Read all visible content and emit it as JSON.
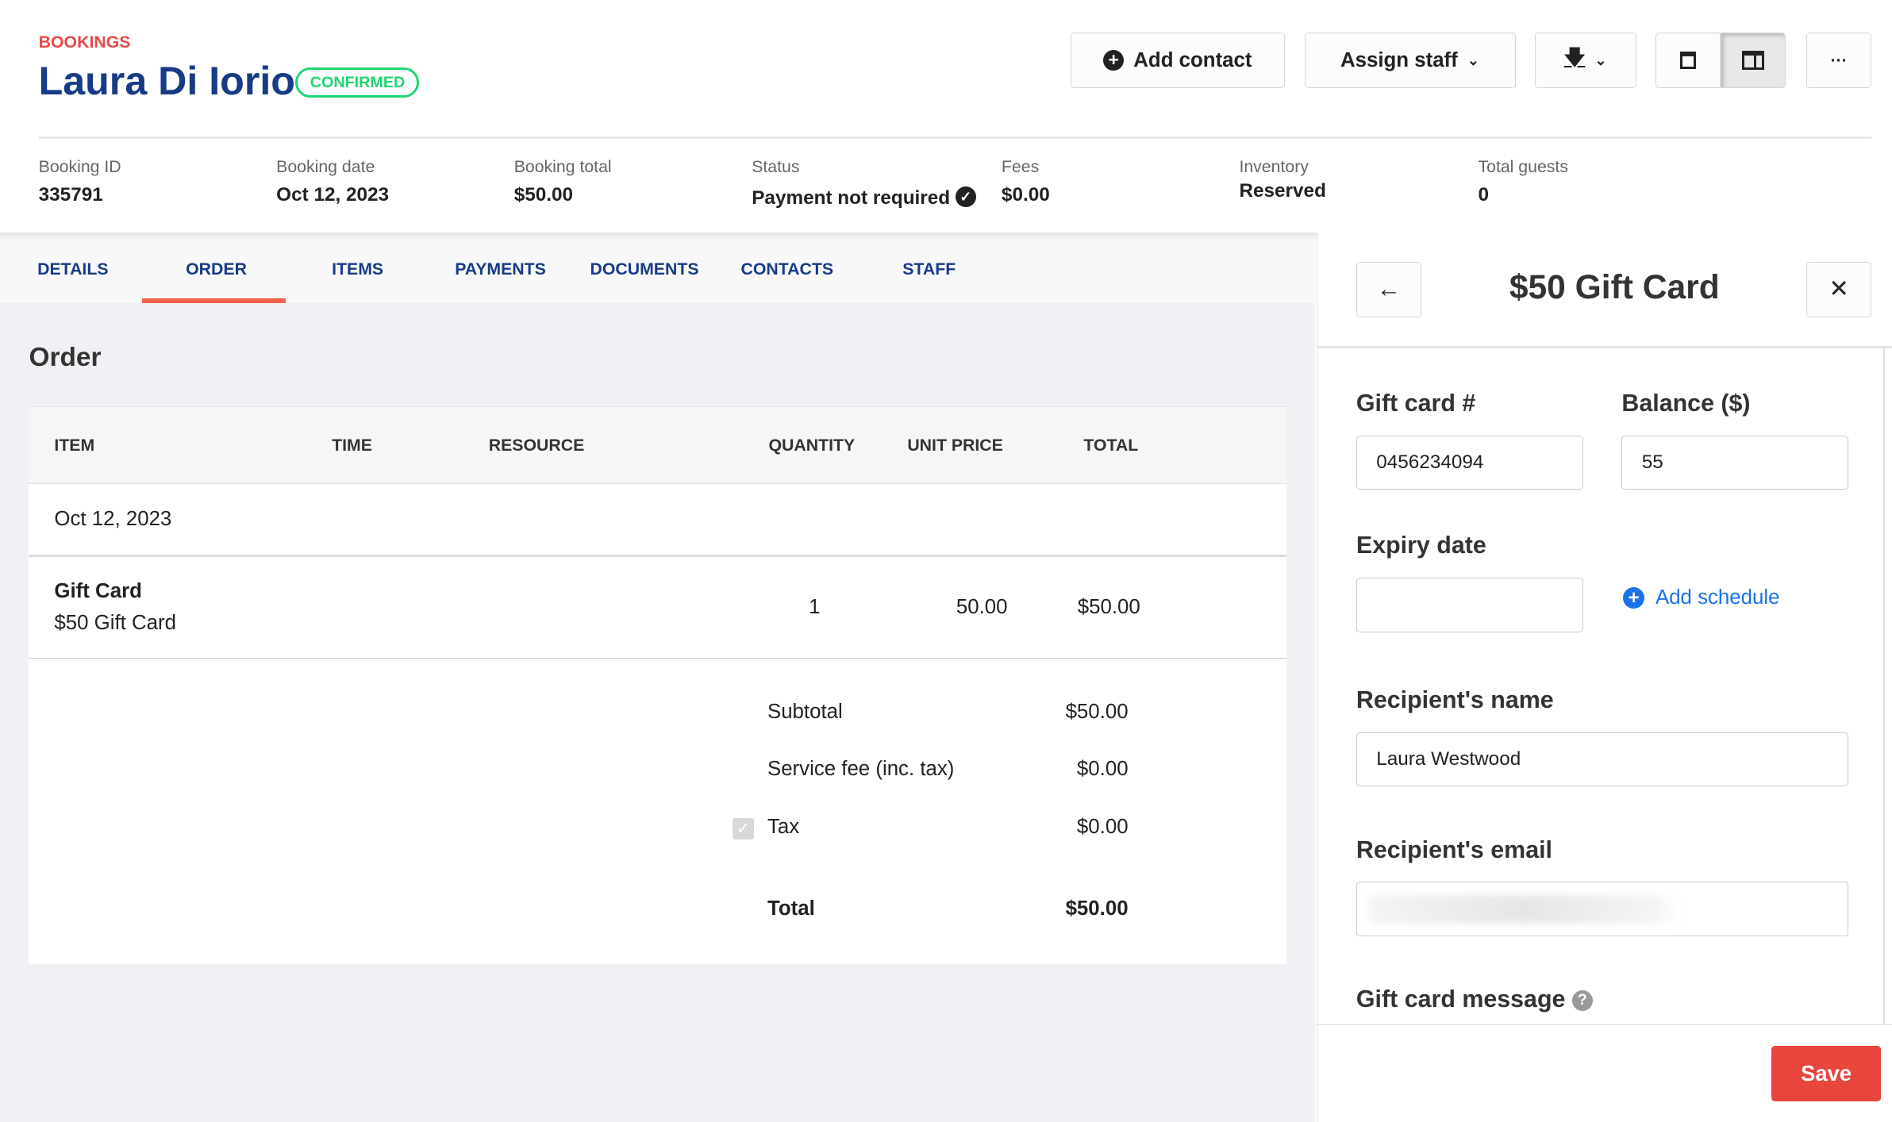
{
  "header": {
    "breadcrumb": "BOOKINGS",
    "title": "Laura Di Iorio",
    "status_badge": "CONFIRMED",
    "buttons": {
      "add_contact": "Add contact",
      "assign_staff": "Assign staff",
      "more": "···"
    }
  },
  "stats": [
    {
      "label": "Booking ID",
      "value": "335791"
    },
    {
      "label": "Booking date",
      "value": "Oct 12, 2023"
    },
    {
      "label": "Booking total",
      "value": "$50.00"
    },
    {
      "label": "Status",
      "value": "Payment not required"
    },
    {
      "label": "Fees",
      "value": "$0.00"
    },
    {
      "label": "Inventory",
      "value": "Reserved"
    },
    {
      "label": "Total guests",
      "value": "0"
    }
  ],
  "tabs": [
    "DETAILS",
    "ORDER",
    "ITEMS",
    "PAYMENTS",
    "DOCUMENTS",
    "CONTACTS",
    "STAFF"
  ],
  "active_tab": "ORDER",
  "order": {
    "heading": "Order",
    "columns": [
      "ITEM",
      "TIME",
      "RESOURCE",
      "QUANTITY",
      "UNIT PRICE",
      "TOTAL"
    ],
    "date_group": "Oct 12, 2023",
    "rows": [
      {
        "item": "Gift Card",
        "subitem": "$50 Gift Card",
        "quantity": "1",
        "unit_price": "50.00",
        "total": "$50.00"
      }
    ],
    "summary": {
      "subtotal_label": "Subtotal",
      "subtotal": "$50.00",
      "service_fee_label": "Service fee (inc. tax)",
      "service_fee": "$0.00",
      "tax_label": "Tax",
      "tax": "$0.00",
      "tax_checked": true,
      "total_label": "Total",
      "total": "$50.00"
    }
  },
  "panel": {
    "title": "$50 Gift Card",
    "gift_card_label": "Gift card #",
    "gift_card_value": "0456234094",
    "balance_label": "Balance ($)",
    "balance_value": "55",
    "expiry_label": "Expiry date",
    "expiry_value": "",
    "add_schedule": "Add schedule",
    "recipient_name_label": "Recipient's name",
    "recipient_name_value": "Laura Westwood",
    "recipient_email_label": "Recipient's email",
    "message_label": "Gift card message",
    "save": "Save"
  },
  "colors": {
    "accent_red": "#e84a4a",
    "navy": "#173b86",
    "confirmed_green": "#1fd672",
    "tab_underline": "#f4614c",
    "link_blue": "#1a73e8",
    "save_red": "#e8453c"
  }
}
